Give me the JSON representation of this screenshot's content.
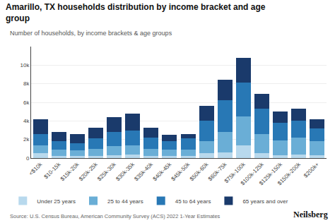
{
  "chart_data": {
    "type": "bar",
    "title": "Amarillo, TX households distribution by income bracket and age group",
    "subtitle": "Number of households, by income brackets & age groups",
    "annotations": [
      "Source: U.S. Census Bureau, American Community Survey (ACS) 2022 1-Year Estimates",
      "Neilsberg"
    ],
    "categories": [
      "<$10k",
      "$10-15k",
      "$15k-20k",
      "$20k-25k",
      "$25k-30k",
      "$30k-35k",
      "$35k-40k",
      "$40k-45k",
      "$45k-50k",
      "$50k-60k",
      "$60k-75k",
      "$75k-100k",
      "$100k-125k",
      "$125k-150k",
      "$150k-200k",
      "$200k+"
    ],
    "series": [
      {
        "name": "Under 25 years",
        "color": "#b8d9ed",
        "values": [
          500,
          200,
          200,
          200,
          300,
          400,
          200,
          200,
          200,
          500,
          600,
          1400,
          500,
          300,
          400,
          300
        ]
      },
      {
        "name": "25 to 44 years",
        "color": "#6aaed6",
        "values": [
          900,
          700,
          600,
          800,
          1000,
          1000,
          800,
          700,
          700,
          1300,
          2200,
          3100,
          2100,
          1600,
          1800,
          1500
        ]
      },
      {
        "name": "45 to 64 years",
        "color": "#2878b5",
        "values": [
          1200,
          900,
          800,
          1100,
          1500,
          1600,
          1200,
          900,
          1200,
          2200,
          3400,
          3600,
          2700,
          1900,
          1800,
          1400
        ]
      },
      {
        "name": "65 years and over",
        "color": "#1a3a6b",
        "values": [
          1600,
          1000,
          1000,
          1200,
          1600,
          1800,
          1100,
          700,
          500,
          1600,
          2200,
          2700,
          1600,
          1200,
          1300,
          1000
        ]
      }
    ],
    "stacked": true,
    "ylim": [
      0,
      12000
    ],
    "yticks": [
      0,
      {
        "value": 2000,
        "label": "2k"
      },
      {
        "value": 4000,
        "label": "4k"
      },
      {
        "value": 6000,
        "label": "6k"
      },
      {
        "value": 8000,
        "label": "8k"
      },
      {
        "value": 10000,
        "label": "10k"
      }
    ],
    "grid": true,
    "legend": "bottom"
  }
}
